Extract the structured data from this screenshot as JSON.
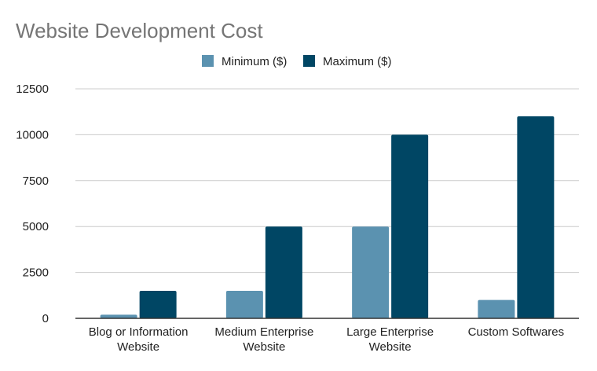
{
  "chart_data": {
    "type": "bar",
    "title": "Website Development Cost",
    "xlabel": "",
    "ylabel": "",
    "categories": [
      [
        "Blog or Information",
        "Website"
      ],
      [
        "Medium Enterprise",
        "Website"
      ],
      [
        "Large Enterprise",
        "Website"
      ],
      [
        "Custom Softwares"
      ]
    ],
    "series": [
      {
        "name": "Minimum ($)",
        "color": "#5b92b0",
        "values": [
          200,
          1500,
          5000,
          1000
        ]
      },
      {
        "name": "Maximum ($)",
        "color": "#004664",
        "values": [
          1500,
          5000,
          10000,
          11000
        ]
      }
    ],
    "ylim": [
      0,
      12500
    ],
    "yticks": [
      0,
      2500,
      5000,
      7500,
      10000,
      12500
    ],
    "ytick_labels": [
      "0",
      "2500",
      "5000",
      "7500",
      "10000",
      "12500"
    ],
    "grid": true,
    "legend_position": "top-center"
  }
}
